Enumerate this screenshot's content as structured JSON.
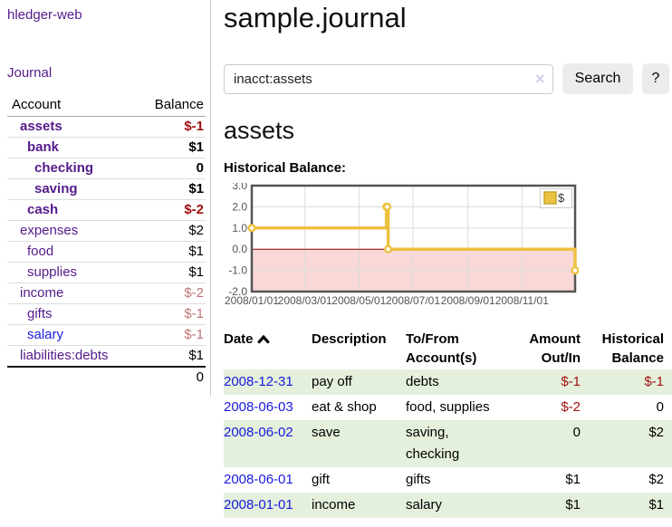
{
  "colors": {
    "link_purple": "#551a8b",
    "link_blue": "#1a1add",
    "negative": "#a01010",
    "negative_dim": "#bb7575",
    "stripe_green": "#e4f0dc",
    "chart_gold": "#edc240",
    "zero_line": "#8b0000",
    "negative_region": "#f9d8d8",
    "grid_line": "#dcdcdc",
    "chart_border": "#545454"
  },
  "app": {
    "brand": "hledger-web",
    "nav": {
      "journal": "Journal"
    }
  },
  "sidebar": {
    "header": {
      "account": "Account",
      "balance": "Balance"
    },
    "accounts": [
      {
        "name": "assets",
        "indent": 1,
        "bold": true,
        "link_color": "purple",
        "balance": "$-1",
        "balance_class": "neg"
      },
      {
        "name": "bank",
        "indent": 2,
        "bold": true,
        "link_color": "purple",
        "balance": "$1",
        "balance_class": "pos"
      },
      {
        "name": "checking",
        "indent": 3,
        "bold": true,
        "link_color": "purple",
        "balance": "0",
        "balance_class": "pos"
      },
      {
        "name": "saving",
        "indent": 3,
        "bold": true,
        "link_color": "purple",
        "balance": "$1",
        "balance_class": "pos"
      },
      {
        "name": "cash",
        "indent": 2,
        "bold": true,
        "link_color": "purple",
        "balance": "$-2",
        "balance_class": "neg"
      },
      {
        "name": "expenses",
        "indent": 1,
        "bold": false,
        "link_color": "purple",
        "balance": "$2",
        "balance_class": "pos"
      },
      {
        "name": "food",
        "indent": 2,
        "bold": false,
        "link_color": "purple",
        "balance": "$1",
        "balance_class": "pos"
      },
      {
        "name": "supplies",
        "indent": 2,
        "bold": false,
        "link_color": "purple",
        "balance": "$1",
        "balance_class": "pos"
      },
      {
        "name": "income",
        "indent": 1,
        "bold": false,
        "link_color": "purple",
        "balance": "$-2",
        "balance_class": "negdim"
      },
      {
        "name": "gifts",
        "indent": 2,
        "bold": false,
        "link_color": "purple",
        "balance": "$-1",
        "balance_class": "negdim"
      },
      {
        "name": "salary",
        "indent": 2,
        "bold": false,
        "link_color": "blue",
        "balance": "$-1",
        "balance_class": "negdim"
      },
      {
        "name": "liabilities:debts",
        "indent": 1,
        "bold": false,
        "link_color": "purple",
        "balance": "$1",
        "balance_class": "pos"
      }
    ],
    "total": "0"
  },
  "main": {
    "title": "sample.journal",
    "search": {
      "value": "inacct:assets",
      "clear_icon": "✕",
      "button_label": "Search",
      "help_label": "?"
    },
    "account_heading": "assets",
    "chart_label": "Historical Balance:"
  },
  "chart_data": {
    "type": "line",
    "title": "Historical Balance",
    "series": [
      {
        "name": "$",
        "color": "#edc240",
        "steps": true,
        "points": [
          [
            "2008-01-01",
            1
          ],
          [
            "2008-06-01",
            2
          ],
          [
            "2008-06-02",
            2
          ],
          [
            "2008-06-03",
            0
          ],
          [
            "2008-12-31",
            -1
          ]
        ]
      }
    ],
    "xlim": [
      "2008-01-01",
      "2008-12-31"
    ],
    "ylim": [
      -2,
      3
    ],
    "yticks": [
      {
        "value": 3,
        "label": "3.0"
      },
      {
        "value": 2,
        "label": "2.0"
      },
      {
        "value": 1,
        "label": "1.0"
      },
      {
        "value": 0,
        "label": "0.0"
      },
      {
        "value": -1,
        "label": "-1.0"
      },
      {
        "value": -2,
        "label": "-2.0"
      }
    ],
    "xticks": [
      {
        "date": "2008-01-01",
        "label": "2008/01/01"
      },
      {
        "date": "2008-03-01",
        "label": "2008/03/01"
      },
      {
        "date": "2008-05-01",
        "label": "2008/05/01"
      },
      {
        "date": "2008-07-01",
        "label": "2008/07/01"
      },
      {
        "date": "2008-09-01",
        "label": "2008/09/01"
      },
      {
        "date": "2008-11-01",
        "label": "2008/11/01"
      }
    ],
    "legend": {
      "label": "$",
      "position": "top-right"
    },
    "grid": true,
    "negative_region_shaded": true
  },
  "register": {
    "headers": {
      "date": "Date",
      "description": "Description",
      "accounts": "To/From Account(s)",
      "amount": "Amount Out/In",
      "balance": "Historical Balance"
    },
    "sort": {
      "column": "date",
      "direction": "ascending"
    },
    "rows": [
      {
        "date": "2008-12-31",
        "description": "pay off",
        "accounts": "debts",
        "amount": "$-1",
        "amount_class": "neg",
        "balance": "$-1",
        "balance_class": "neg",
        "stripe": true
      },
      {
        "date": "2008-06-03",
        "description": "eat & shop",
        "accounts": "food, supplies",
        "amount": "$-2",
        "amount_class": "neg",
        "balance": "0",
        "balance_class": "pos",
        "stripe": false
      },
      {
        "date": "2008-06-02",
        "description": "save",
        "accounts": "saving, checking",
        "amount": "0",
        "amount_class": "pos",
        "balance": "$2",
        "balance_class": "pos",
        "stripe": true
      },
      {
        "date": "2008-06-01",
        "description": "gift",
        "accounts": "gifts",
        "amount": "$1",
        "amount_class": "pos",
        "balance": "$2",
        "balance_class": "pos",
        "stripe": false
      },
      {
        "date": "2008-01-01",
        "description": "income",
        "accounts": "salary",
        "amount": "$1",
        "amount_class": "pos",
        "balance": "$1",
        "balance_class": "pos",
        "stripe": true
      }
    ]
  }
}
